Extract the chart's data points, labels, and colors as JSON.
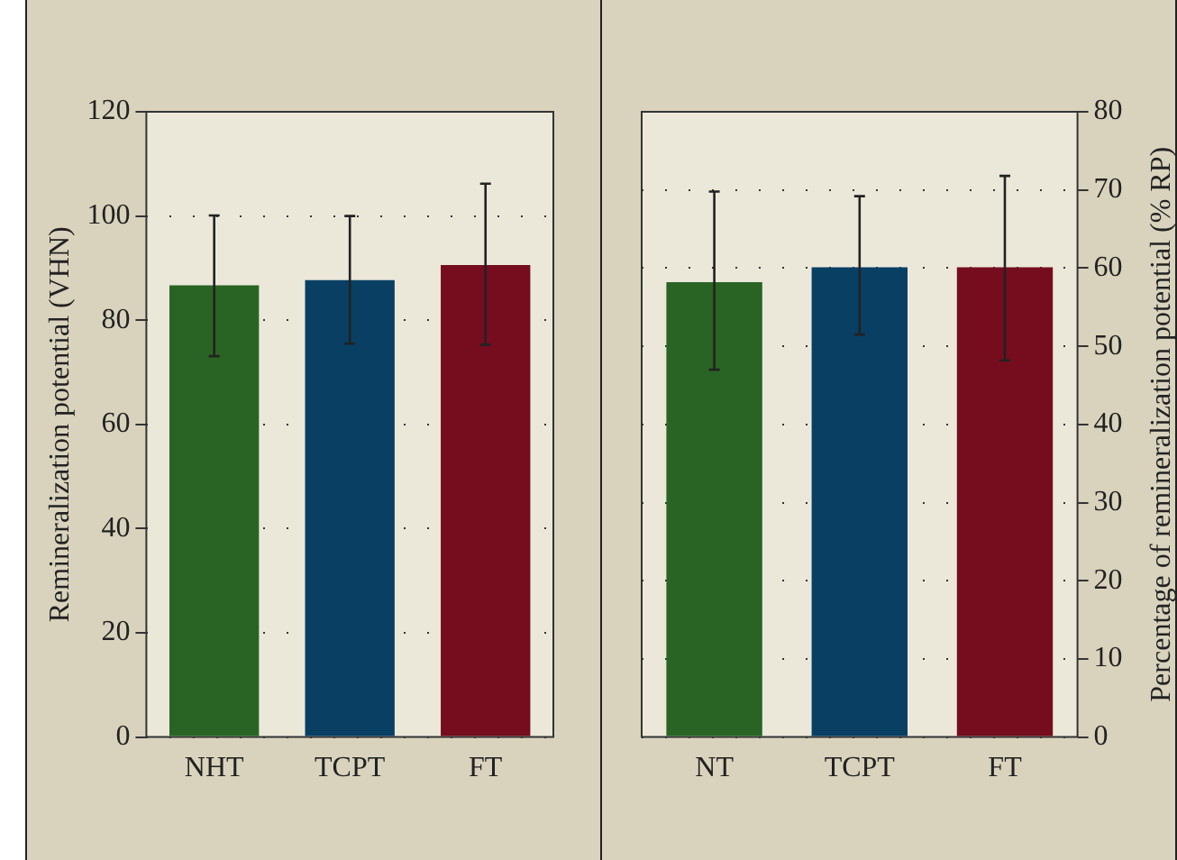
{
  "chart_data": [
    {
      "type": "bar",
      "ylabel": "Remineralization potential (VHN)",
      "categories": [
        "NHT",
        "TCPT",
        "FT"
      ],
      "values": [
        86.7,
        87.7,
        90.6
      ],
      "colors": [
        "#2a6424",
        "#083f63",
        "#750d1e"
      ],
      "errors": [
        [
          73.1,
          100.1
        ],
        [
          75.5,
          100
        ],
        [
          75.3,
          106.2
        ]
      ],
      "ylim": [
        0,
        120
      ],
      "yticks": [
        0,
        20,
        40,
        60,
        80,
        100,
        120
      ],
      "grid": "y"
    },
    {
      "type": "bar",
      "y2label": "Percentage of remineralization potential (% RP)",
      "categories": [
        "NT",
        "TCPT",
        "FT"
      ],
      "series": [
        {
          "values": [
            58.2,
            60.1,
            60.1
          ],
          "colors": [
            "#2a6424",
            "#083f63",
            "#750d1e"
          ],
          "errors": [
            [
              47.0,
              69.8
            ],
            [
              51.5,
              69.2
            ],
            [
              48.2,
              71.8
            ]
          ],
          "axis": "y2"
        }
      ],
      "y2lim": [
        0,
        80
      ],
      "y2ticks": [
        0,
        10,
        20,
        30,
        40,
        50,
        60,
        70,
        80
      ],
      "grid": "y"
    }
  ]
}
